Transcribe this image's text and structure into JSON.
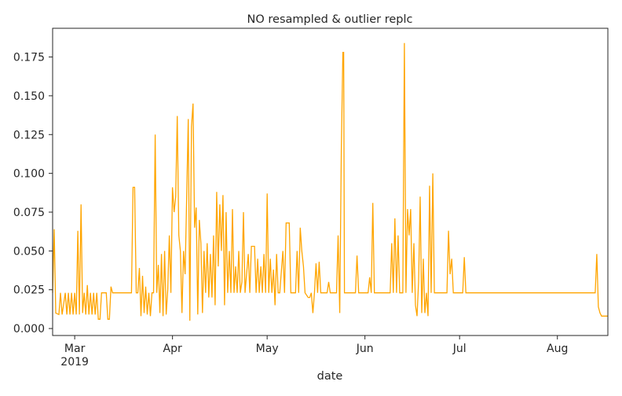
{
  "chart_data": {
    "type": "line",
    "title": "NO resampled & outlier replc",
    "xlabel": "date",
    "ylabel": "",
    "x_range": [
      "2019-02-22",
      "2019-08-17"
    ],
    "ylim": [
      -0.0045,
      0.1935
    ],
    "grid": false,
    "legend": "none",
    "y_ticks": [
      0.0,
      0.025,
      0.05,
      0.075,
      0.1,
      0.125,
      0.15,
      0.175
    ],
    "y_tick_labels": [
      "0.000",
      "0.025",
      "0.050",
      "0.075",
      "0.100",
      "0.125",
      "0.150",
      "0.175"
    ],
    "x_ticks": [
      {
        "date": "2019-03-01",
        "label": "Mar",
        "sublabel": "2019"
      },
      {
        "date": "2019-04-01",
        "label": "Apr",
        "sublabel": ""
      },
      {
        "date": "2019-05-01",
        "label": "May",
        "sublabel": ""
      },
      {
        "date": "2019-06-01",
        "label": "Jun",
        "sublabel": ""
      },
      {
        "date": "2019-07-01",
        "label": "Jul",
        "sublabel": ""
      },
      {
        "date": "2019-08-01",
        "label": "Aug",
        "sublabel": ""
      }
    ],
    "series": [
      {
        "color": "#ffa500",
        "points": [
          [
            "2019-02-22",
            0.023
          ],
          [
            "2019-02-22T12",
            0.064
          ],
          [
            "2019-02-23",
            0.01
          ],
          [
            "2019-02-24",
            0.009
          ],
          [
            "2019-02-24T12",
            0.023
          ],
          [
            "2019-02-25",
            0.009
          ],
          [
            "2019-02-26",
            0.023
          ],
          [
            "2019-02-26T12",
            0.009
          ],
          [
            "2019-02-27",
            0.023
          ],
          [
            "2019-02-27T12",
            0.009
          ],
          [
            "2019-02-28",
            0.023
          ],
          [
            "2019-02-28T12",
            0.009
          ],
          [
            "2019-03-01",
            0.023
          ],
          [
            "2019-03-01T12",
            0.009
          ],
          [
            "2019-03-02",
            0.063
          ],
          [
            "2019-03-02T12",
            0.009
          ],
          [
            "2019-03-03",
            0.08
          ],
          [
            "2019-03-03T12",
            0.01
          ],
          [
            "2019-03-04",
            0.023
          ],
          [
            "2019-03-04T12",
            0.009
          ],
          [
            "2019-03-05",
            0.028
          ],
          [
            "2019-03-05T12",
            0.009
          ],
          [
            "2019-03-06",
            0.023
          ],
          [
            "2019-03-06T12",
            0.009
          ],
          [
            "2019-03-07",
            0.023
          ],
          [
            "2019-03-07T12",
            0.009
          ],
          [
            "2019-03-08",
            0.023
          ],
          [
            "2019-03-08T12",
            0.006
          ],
          [
            "2019-03-09",
            0.006
          ],
          [
            "2019-03-09T12",
            0.023
          ],
          [
            "2019-03-10",
            0.023
          ],
          [
            "2019-03-11",
            0.023
          ],
          [
            "2019-03-11T12",
            0.006
          ],
          [
            "2019-03-12",
            0.006
          ],
          [
            "2019-03-12T12",
            0.027
          ],
          [
            "2019-03-13",
            0.023
          ],
          [
            "2019-03-16",
            0.023
          ],
          [
            "2019-03-19",
            0.023
          ],
          [
            "2019-03-19T12",
            0.091
          ],
          [
            "2019-03-20",
            0.091
          ],
          [
            "2019-03-20T12",
            0.023
          ],
          [
            "2019-03-21",
            0.023
          ],
          [
            "2019-03-21T12",
            0.039
          ],
          [
            "2019-03-22",
            0.008
          ],
          [
            "2019-03-22T12",
            0.034
          ],
          [
            "2019-03-23",
            0.01
          ],
          [
            "2019-03-23T12",
            0.027
          ],
          [
            "2019-03-24",
            0.009
          ],
          [
            "2019-03-24T12",
            0.023
          ],
          [
            "2019-03-25",
            0.008
          ],
          [
            "2019-03-25T12",
            0.023
          ],
          [
            "2019-03-26",
            0.023
          ],
          [
            "2019-03-26T12",
            0.125
          ],
          [
            "2019-03-27",
            0.023
          ],
          [
            "2019-03-27T12",
            0.041
          ],
          [
            "2019-03-28",
            0.01
          ],
          [
            "2019-03-28T12",
            0.048
          ],
          [
            "2019-03-29",
            0.008
          ],
          [
            "2019-03-29T12",
            0.05
          ],
          [
            "2019-03-30",
            0.009
          ],
          [
            "2019-03-30T12",
            0.025
          ],
          [
            "2019-03-31",
            0.06
          ],
          [
            "2019-03-31T12",
            0.023
          ],
          [
            "2019-04-01",
            0.091
          ],
          [
            "2019-04-01T12",
            0.075
          ],
          [
            "2019-04-02",
            0.085
          ],
          [
            "2019-04-02T12",
            0.137
          ],
          [
            "2019-04-03",
            0.06
          ],
          [
            "2019-04-03T12",
            0.05
          ],
          [
            "2019-04-04",
            0.01
          ],
          [
            "2019-04-04T12",
            0.05
          ],
          [
            "2019-04-05",
            0.035
          ],
          [
            "2019-04-05T12",
            0.085
          ],
          [
            "2019-04-06",
            0.135
          ],
          [
            "2019-04-06T12",
            0.005
          ],
          [
            "2019-04-07",
            0.13
          ],
          [
            "2019-04-07T12",
            0.145
          ],
          [
            "2019-04-08",
            0.065
          ],
          [
            "2019-04-08T12",
            0.078
          ],
          [
            "2019-04-09",
            0.009
          ],
          [
            "2019-04-09T12",
            0.07
          ],
          [
            "2019-04-10",
            0.055
          ],
          [
            "2019-04-10T12",
            0.01
          ],
          [
            "2019-04-11",
            0.05
          ],
          [
            "2019-04-11T12",
            0.023
          ],
          [
            "2019-04-12",
            0.055
          ],
          [
            "2019-04-12T12",
            0.02
          ],
          [
            "2019-04-13",
            0.048
          ],
          [
            "2019-04-13T12",
            0.02
          ],
          [
            "2019-04-14",
            0.06
          ],
          [
            "2019-04-14T12",
            0.015
          ],
          [
            "2019-04-15",
            0.088
          ],
          [
            "2019-04-15T12",
            0.04
          ],
          [
            "2019-04-16",
            0.08
          ],
          [
            "2019-04-16T12",
            0.05
          ],
          [
            "2019-04-17",
            0.086
          ],
          [
            "2019-04-17T12",
            0.015
          ],
          [
            "2019-04-18",
            0.075
          ],
          [
            "2019-04-18T12",
            0.023
          ],
          [
            "2019-04-19",
            0.05
          ],
          [
            "2019-04-19T12",
            0.023
          ],
          [
            "2019-04-20",
            0.077
          ],
          [
            "2019-04-20T12",
            0.023
          ],
          [
            "2019-04-21",
            0.04
          ],
          [
            "2019-04-21T12",
            0.023
          ],
          [
            "2019-04-22",
            0.05
          ],
          [
            "2019-04-22T12",
            0.023
          ],
          [
            "2019-04-23",
            0.03
          ],
          [
            "2019-04-23T12",
            0.075
          ],
          [
            "2019-04-24",
            0.023
          ],
          [
            "2019-04-25",
            0.048
          ],
          [
            "2019-04-25T12",
            0.023
          ],
          [
            "2019-04-26",
            0.053
          ],
          [
            "2019-04-27",
            0.053
          ],
          [
            "2019-04-27T12",
            0.023
          ],
          [
            "2019-04-28",
            0.045
          ],
          [
            "2019-04-28T12",
            0.023
          ],
          [
            "2019-04-29",
            0.04
          ],
          [
            "2019-04-29T12",
            0.023
          ],
          [
            "2019-04-30",
            0.048
          ],
          [
            "2019-04-30T12",
            0.023
          ],
          [
            "2019-05-01",
            0.087
          ],
          [
            "2019-05-01T12",
            0.023
          ],
          [
            "2019-05-02",
            0.045
          ],
          [
            "2019-05-02T12",
            0.023
          ],
          [
            "2019-05-03",
            0.038
          ],
          [
            "2019-05-03T12",
            0.015
          ],
          [
            "2019-05-04",
            0.048
          ],
          [
            "2019-05-04T12",
            0.023
          ],
          [
            "2019-05-05",
            0.023
          ],
          [
            "2019-05-06",
            0.05
          ],
          [
            "2019-05-06T12",
            0.023
          ],
          [
            "2019-05-07",
            0.068
          ],
          [
            "2019-05-08",
            0.068
          ],
          [
            "2019-05-08T12",
            0.023
          ],
          [
            "2019-05-09",
            0.023
          ],
          [
            "2019-05-10",
            0.023
          ],
          [
            "2019-05-10T12",
            0.05
          ],
          [
            "2019-05-11",
            0.023
          ],
          [
            "2019-05-11T12",
            0.065
          ],
          [
            "2019-05-12",
            0.05
          ],
          [
            "2019-05-12T12",
            0.04
          ],
          [
            "2019-05-13",
            0.023
          ],
          [
            "2019-05-14",
            0.02
          ],
          [
            "2019-05-14T12",
            0.02
          ],
          [
            "2019-05-15",
            0.023
          ],
          [
            "2019-05-15T12",
            0.01
          ],
          [
            "2019-05-16",
            0.023
          ],
          [
            "2019-05-16T12",
            0.042
          ],
          [
            "2019-05-17",
            0.023
          ],
          [
            "2019-05-17T12",
            0.043
          ],
          [
            "2019-05-18",
            0.023
          ],
          [
            "2019-05-19",
            0.023
          ],
          [
            "2019-05-20",
            0.023
          ],
          [
            "2019-05-20T12",
            0.03
          ],
          [
            "2019-05-21",
            0.023
          ],
          [
            "2019-05-22",
            0.023
          ],
          [
            "2019-05-23",
            0.023
          ],
          [
            "2019-05-23T12",
            0.06
          ],
          [
            "2019-05-24",
            0.01
          ],
          [
            "2019-05-24T12",
            0.115
          ],
          [
            "2019-05-25",
            0.178
          ],
          [
            "2019-05-25T06",
            0.178
          ],
          [
            "2019-05-25T12",
            0.023
          ],
          [
            "2019-05-26",
            0.023
          ],
          [
            "2019-05-27",
            0.023
          ],
          [
            "2019-05-28",
            0.023
          ],
          [
            "2019-05-29",
            0.023
          ],
          [
            "2019-05-29T12",
            0.047
          ],
          [
            "2019-05-30",
            0.023
          ],
          [
            "2019-06-01",
            0.023
          ],
          [
            "2019-06-02",
            0.023
          ],
          [
            "2019-06-02T12",
            0.033
          ],
          [
            "2019-06-03",
            0.023
          ],
          [
            "2019-06-03T12",
            0.081
          ],
          [
            "2019-06-04",
            0.023
          ],
          [
            "2019-06-05",
            0.023
          ],
          [
            "2019-06-06",
            0.023
          ],
          [
            "2019-06-08",
            0.023
          ],
          [
            "2019-06-09",
            0.023
          ],
          [
            "2019-06-09T12",
            0.055
          ],
          [
            "2019-06-10",
            0.023
          ],
          [
            "2019-06-10T12",
            0.071
          ],
          [
            "2019-06-11",
            0.023
          ],
          [
            "2019-06-11T12",
            0.06
          ],
          [
            "2019-06-12",
            0.023
          ],
          [
            "2019-06-13",
            0.023
          ],
          [
            "2019-06-13T12",
            0.184
          ],
          [
            "2019-06-14",
            0.023
          ],
          [
            "2019-06-14T12",
            0.077
          ],
          [
            "2019-06-15",
            0.06
          ],
          [
            "2019-06-15T12",
            0.077
          ],
          [
            "2019-06-16",
            0.023
          ],
          [
            "2019-06-16T12",
            0.055
          ],
          [
            "2019-06-17",
            0.015
          ],
          [
            "2019-06-17T12",
            0.008
          ],
          [
            "2019-06-18",
            0.03
          ],
          [
            "2019-06-18T12",
            0.085
          ],
          [
            "2019-06-19",
            0.01
          ],
          [
            "2019-06-19T12",
            0.045
          ],
          [
            "2019-06-20",
            0.01
          ],
          [
            "2019-06-20T12",
            0.023
          ],
          [
            "2019-06-21",
            0.008
          ],
          [
            "2019-06-21T12",
            0.092
          ],
          [
            "2019-06-22",
            0.023
          ],
          [
            "2019-06-22T12",
            0.1
          ],
          [
            "2019-06-23",
            0.023
          ],
          [
            "2019-06-24",
            0.023
          ],
          [
            "2019-06-25",
            0.023
          ],
          [
            "2019-06-26",
            0.023
          ],
          [
            "2019-06-27",
            0.023
          ],
          [
            "2019-06-27T12",
            0.063
          ],
          [
            "2019-06-28",
            0.035
          ],
          [
            "2019-06-28T12",
            0.045
          ],
          [
            "2019-06-29",
            0.023
          ],
          [
            "2019-06-30",
            0.023
          ],
          [
            "2019-07-01",
            0.023
          ],
          [
            "2019-07-02",
            0.023
          ],
          [
            "2019-07-02T12",
            0.046
          ],
          [
            "2019-07-03",
            0.023
          ],
          [
            "2019-07-15",
            0.023
          ],
          [
            "2019-08-01",
            0.023
          ],
          [
            "2019-08-12",
            0.023
          ],
          [
            "2019-08-13",
            0.023
          ],
          [
            "2019-08-13T12",
            0.048
          ],
          [
            "2019-08-14",
            0.014
          ],
          [
            "2019-08-14T12",
            0.01
          ],
          [
            "2019-08-15",
            0.008
          ],
          [
            "2019-08-16",
            0.008
          ],
          [
            "2019-08-17",
            0.008
          ]
        ]
      }
    ]
  }
}
